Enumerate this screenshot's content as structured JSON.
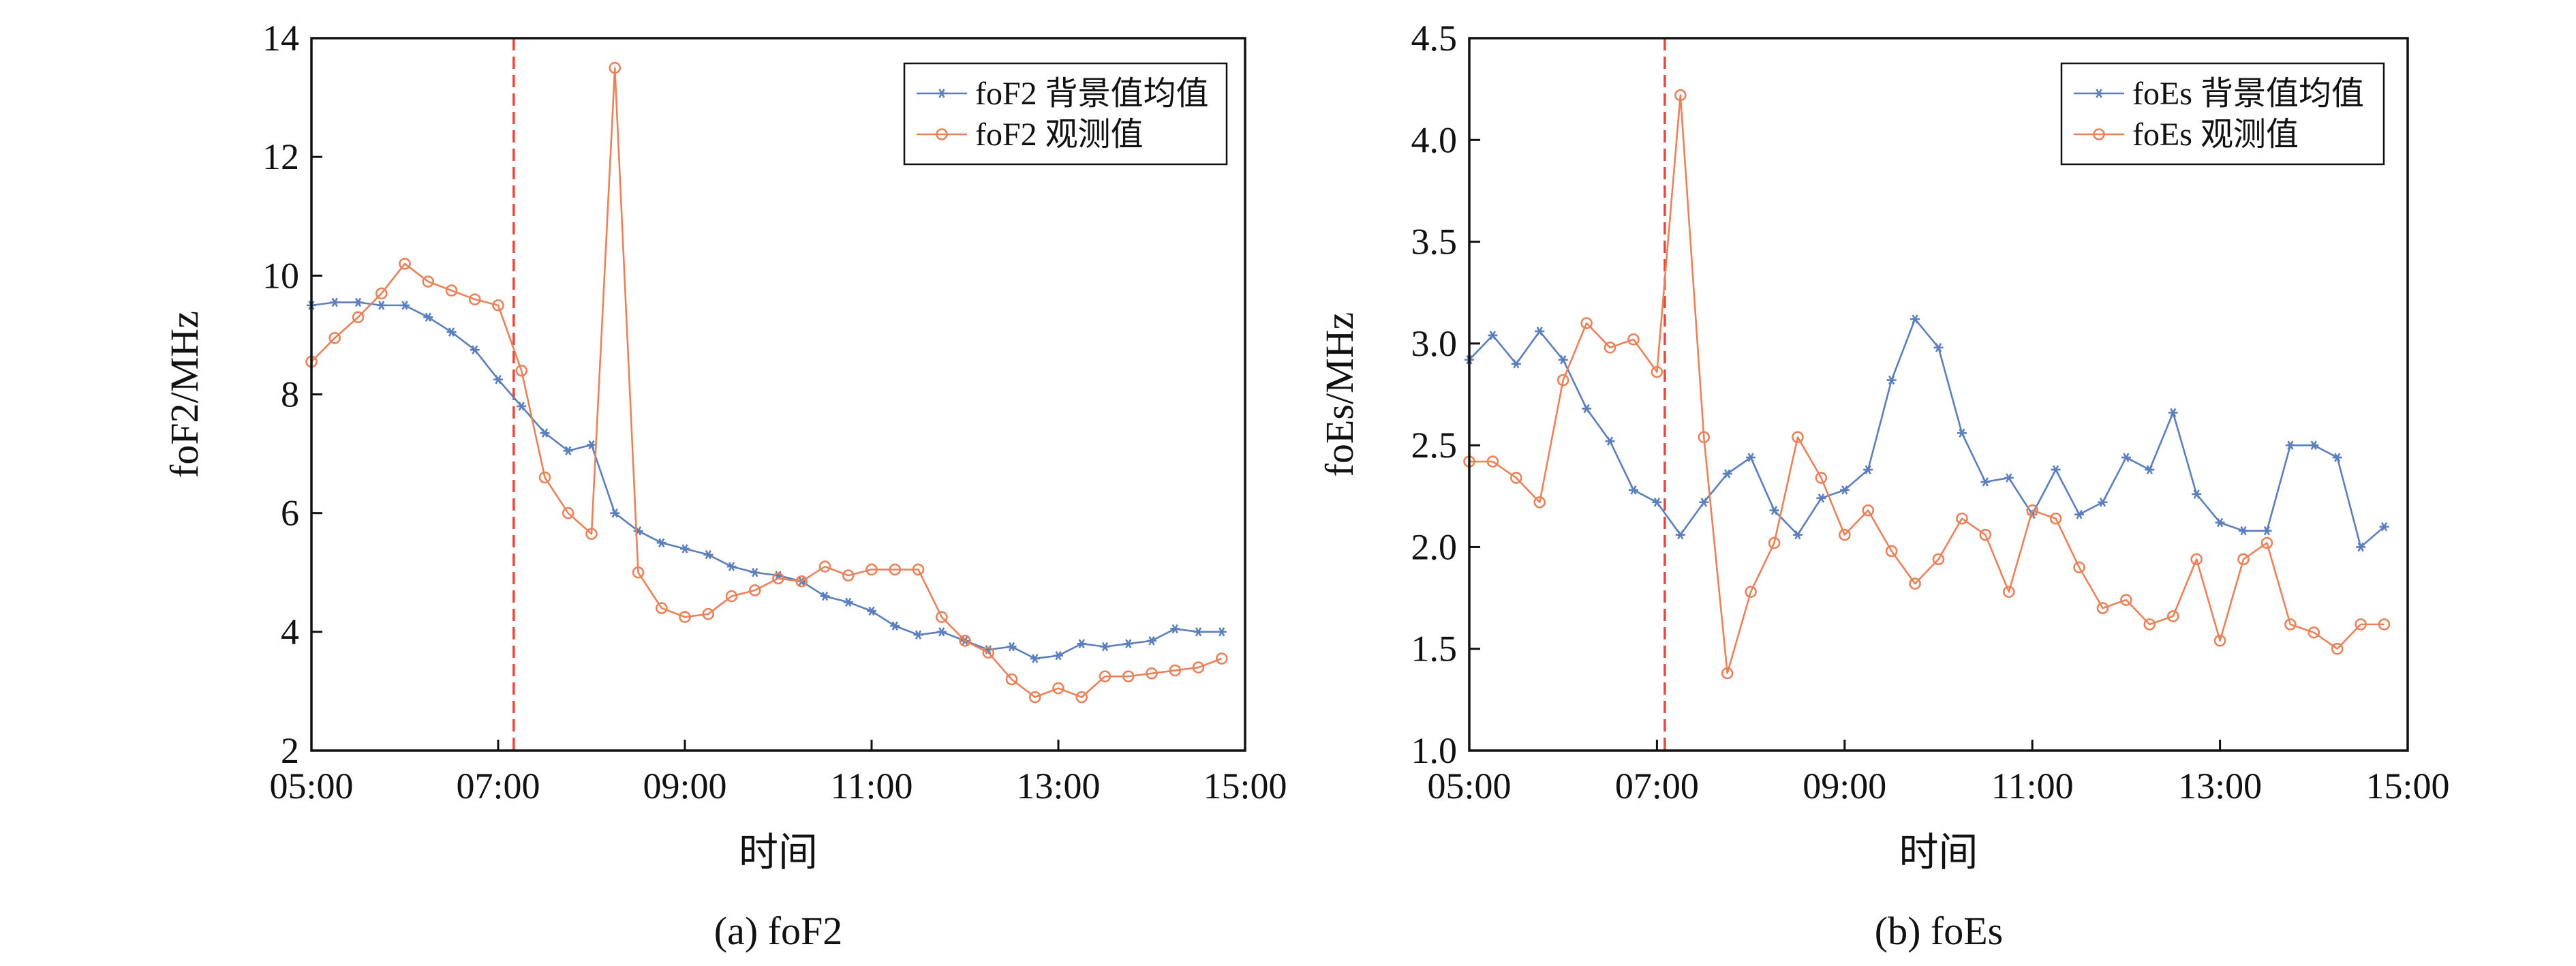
{
  "chart_data": [
    {
      "type": "line",
      "caption": "(a) foF2",
      "xlabel": "时间",
      "ylabel": "foF2/MHz",
      "x_ticks": [
        "05:00",
        "07:00",
        "09:00",
        "11:00",
        "13:00",
        "15:00"
      ],
      "y_ticks": [
        "2",
        "4",
        "6",
        "8",
        "10",
        "12",
        "14"
      ],
      "xlim": [
        "05:00",
        "15:00"
      ],
      "ylim": [
        2,
        14
      ],
      "grid": false,
      "legend_position": "top-right",
      "event_line": {
        "x": "07:10",
        "color": "#e8473c",
        "style": "dashed"
      },
      "series": [
        {
          "name": "foF2 背景值均值",
          "color": "#5b7fbd",
          "marker": "star",
          "x": [
            "05:00",
            "05:15",
            "05:30",
            "05:45",
            "06:00",
            "06:15",
            "06:30",
            "06:45",
            "07:00",
            "07:15",
            "07:30",
            "07:45",
            "08:00",
            "08:15",
            "08:30",
            "08:45",
            "09:00",
            "09:15",
            "09:30",
            "09:45",
            "10:00",
            "10:15",
            "10:30",
            "10:45",
            "11:00",
            "11:15",
            "11:30",
            "11:45",
            "12:00",
            "12:15",
            "12:30",
            "12:45",
            "13:00",
            "13:15",
            "13:30",
            "13:45",
            "14:00",
            "14:15",
            "14:30",
            "14:45"
          ],
          "values": [
            9.5,
            9.55,
            9.55,
            9.5,
            9.5,
            9.3,
            9.05,
            8.75,
            8.25,
            7.8,
            7.35,
            7.05,
            7.15,
            6.0,
            5.7,
            5.5,
            5.4,
            5.3,
            5.1,
            5.0,
            4.95,
            4.85,
            4.6,
            4.5,
            4.35,
            4.1,
            3.95,
            4.0,
            3.85,
            3.7,
            3.75,
            3.55,
            3.6,
            3.8,
            3.75,
            3.8,
            3.85,
            4.05,
            4.0,
            4.0
          ]
        },
        {
          "name": "foF2 观测值",
          "color": "#e8825a",
          "marker": "circle",
          "x": [
            "05:00",
            "05:15",
            "05:30",
            "05:45",
            "06:00",
            "06:15",
            "06:30",
            "06:45",
            "07:00",
            "07:15",
            "07:30",
            "07:45",
            "08:00",
            "08:15",
            "08:30",
            "08:45",
            "09:00",
            "09:15",
            "09:30",
            "09:45",
            "10:00",
            "10:15",
            "10:30",
            "10:45",
            "11:00",
            "11:15",
            "11:30",
            "11:45",
            "12:00",
            "12:15",
            "12:30",
            "12:45",
            "13:00",
            "13:15",
            "13:30",
            "13:45",
            "14:00",
            "14:15",
            "14:30",
            "14:45"
          ],
          "values": [
            8.55,
            8.95,
            9.3,
            9.7,
            10.2,
            9.9,
            9.75,
            9.6,
            9.5,
            8.4,
            6.6,
            6.0,
            5.65,
            13.5,
            5.0,
            4.4,
            4.25,
            4.3,
            4.6,
            4.7,
            4.9,
            4.85,
            5.1,
            4.95,
            5.05,
            5.05,
            5.05,
            4.25,
            3.85,
            3.65,
            3.2,
            2.9,
            3.05,
            2.9,
            3.25,
            3.25,
            3.3,
            3.35,
            3.4,
            3.55
          ]
        }
      ]
    },
    {
      "type": "line",
      "caption": "(b) foEs",
      "xlabel": "时间",
      "ylabel": "foEs/MHz",
      "x_ticks": [
        "05:00",
        "07:00",
        "09:00",
        "11:00",
        "13:00",
        "15:00"
      ],
      "y_ticks": [
        "1.0",
        "1.5",
        "2.0",
        "2.5",
        "3.0",
        "3.5",
        "4.0",
        "4.5"
      ],
      "xlim": [
        "05:00",
        "15:00"
      ],
      "ylim": [
        1.0,
        4.5
      ],
      "grid": false,
      "legend_position": "top-right",
      "event_line": {
        "x": "07:05",
        "color": "#e8473c",
        "style": "dashed"
      },
      "series": [
        {
          "name": "foEs 背景值均值",
          "color": "#5b7fbd",
          "marker": "star",
          "x": [
            "05:00",
            "05:15",
            "05:30",
            "05:45",
            "06:00",
            "06:15",
            "06:30",
            "06:45",
            "07:00",
            "07:15",
            "07:30",
            "07:45",
            "08:00",
            "08:15",
            "08:30",
            "08:45",
            "09:00",
            "09:15",
            "09:30",
            "09:45",
            "10:00",
            "10:15",
            "10:30",
            "10:45",
            "11:00",
            "11:15",
            "11:30",
            "11:45",
            "12:00",
            "12:15",
            "12:30",
            "12:45",
            "13:00",
            "13:15",
            "13:30",
            "13:45",
            "14:00",
            "14:15",
            "14:30",
            "14:45"
          ],
          "values": [
            2.92,
            3.04,
            2.9,
            3.06,
            2.92,
            2.68,
            2.52,
            2.28,
            2.22,
            2.06,
            2.22,
            2.36,
            2.44,
            2.18,
            2.06,
            2.24,
            2.28,
            2.38,
            2.82,
            3.12,
            2.98,
            2.56,
            2.32,
            2.34,
            2.16,
            2.38,
            2.16,
            2.22,
            2.44,
            2.38,
            2.66,
            2.26,
            2.12,
            2.08,
            2.08,
            2.5,
            2.5,
            2.44,
            2.0,
            2.1
          ]
        },
        {
          "name": "foEs 观测值",
          "color": "#e8825a",
          "marker": "circle",
          "x": [
            "05:00",
            "05:15",
            "05:30",
            "05:45",
            "06:00",
            "06:15",
            "06:30",
            "06:45",
            "07:00",
            "07:15",
            "07:30",
            "07:45",
            "08:00",
            "08:15",
            "08:30",
            "08:45",
            "09:00",
            "09:15",
            "09:30",
            "09:45",
            "10:00",
            "10:15",
            "10:30",
            "10:45",
            "11:00",
            "11:15",
            "11:30",
            "11:45",
            "12:00",
            "12:15",
            "12:30",
            "12:45",
            "13:00",
            "13:15",
            "13:30",
            "13:45",
            "14:00",
            "14:15",
            "14:30",
            "14:45"
          ],
          "values": [
            2.42,
            2.42,
            2.34,
            2.22,
            2.82,
            3.1,
            2.98,
            3.02,
            2.86,
            4.22,
            2.54,
            1.38,
            1.78,
            2.02,
            2.54,
            2.34,
            2.06,
            2.18,
            1.98,
            1.82,
            1.94,
            2.14,
            2.06,
            1.78,
            2.18,
            2.14,
            1.9,
            1.7,
            1.74,
            1.62,
            1.66,
            1.94,
            1.54,
            1.94,
            2.02,
            1.62,
            1.58,
            1.5,
            1.62,
            1.62
          ]
        }
      ]
    }
  ]
}
